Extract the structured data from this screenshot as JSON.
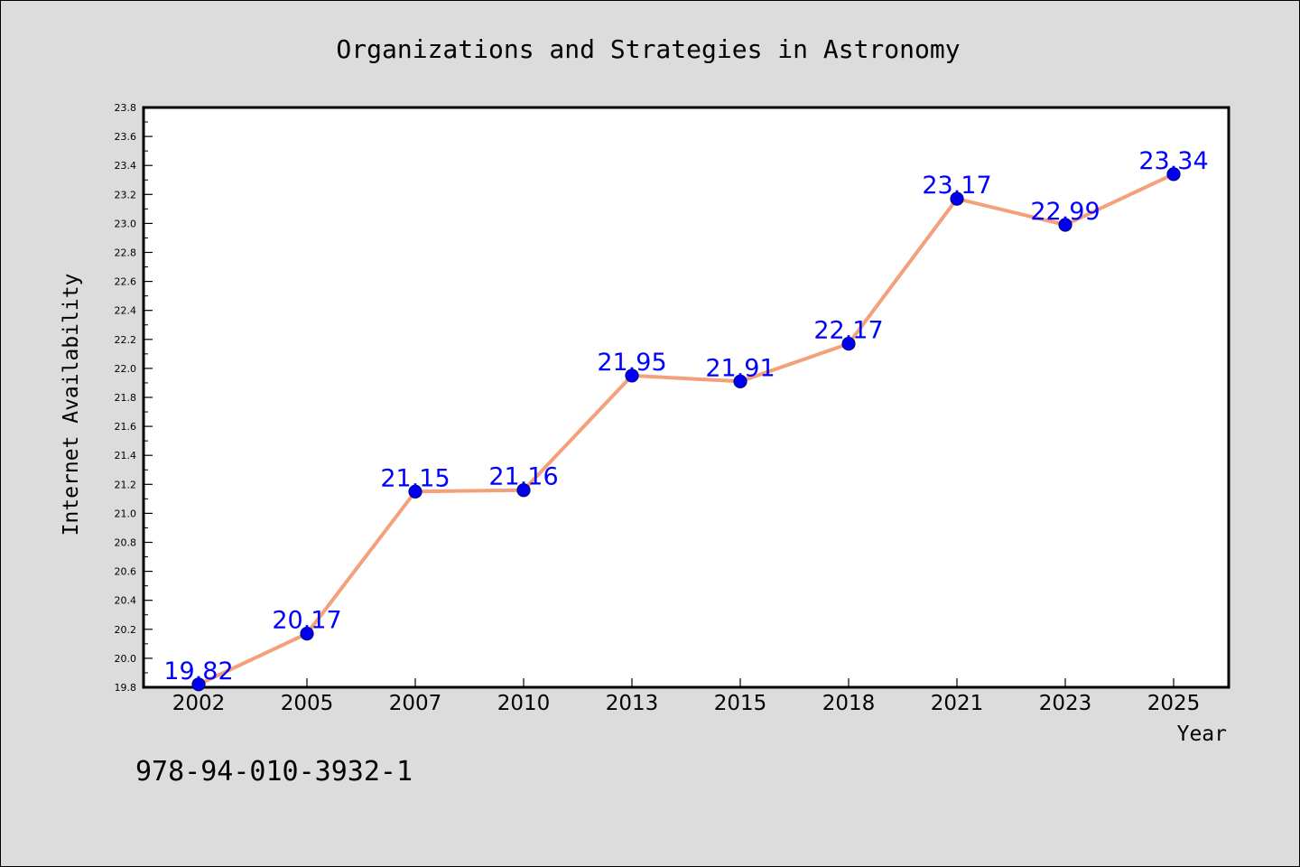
{
  "page": {
    "identifier": "978-94-010-3932-1"
  },
  "colors": {
    "background": "#dcdcdc",
    "plot_background": "#ffffff",
    "line": "#f4a07a",
    "marker": "#0000ee",
    "data_label": "#0000ff",
    "text": "#000000"
  },
  "chart_data": {
    "type": "line",
    "title": "Organizations and Strategies in Astronomy",
    "xlabel": "Year",
    "ylabel": "Internet Availability",
    "categories": [
      "2002",
      "2005",
      "2007",
      "2010",
      "2013",
      "2015",
      "2018",
      "2021",
      "2023",
      "2025"
    ],
    "values": [
      19.82,
      20.17,
      21.15,
      21.16,
      21.95,
      21.91,
      22.17,
      23.17,
      22.99,
      23.34
    ],
    "data_labels": [
      "19.82",
      "20.17",
      "21.15",
      "21.16",
      "21.95",
      "21.91",
      "22.17",
      "23.17",
      "22.99",
      "23.34"
    ],
    "ylim": [
      19.8,
      23.8
    ],
    "yticks": [
      "19.8",
      "20.0",
      "20.2",
      "20.4",
      "20.6",
      "20.8",
      "21.0",
      "21.2",
      "21.4",
      "21.6",
      "21.8",
      "22.0",
      "22.2",
      "22.4",
      "22.6",
      "22.8",
      "23.0",
      "23.2",
      "23.4",
      "23.6",
      "23.8"
    ],
    "grid": false,
    "legend": "none"
  }
}
